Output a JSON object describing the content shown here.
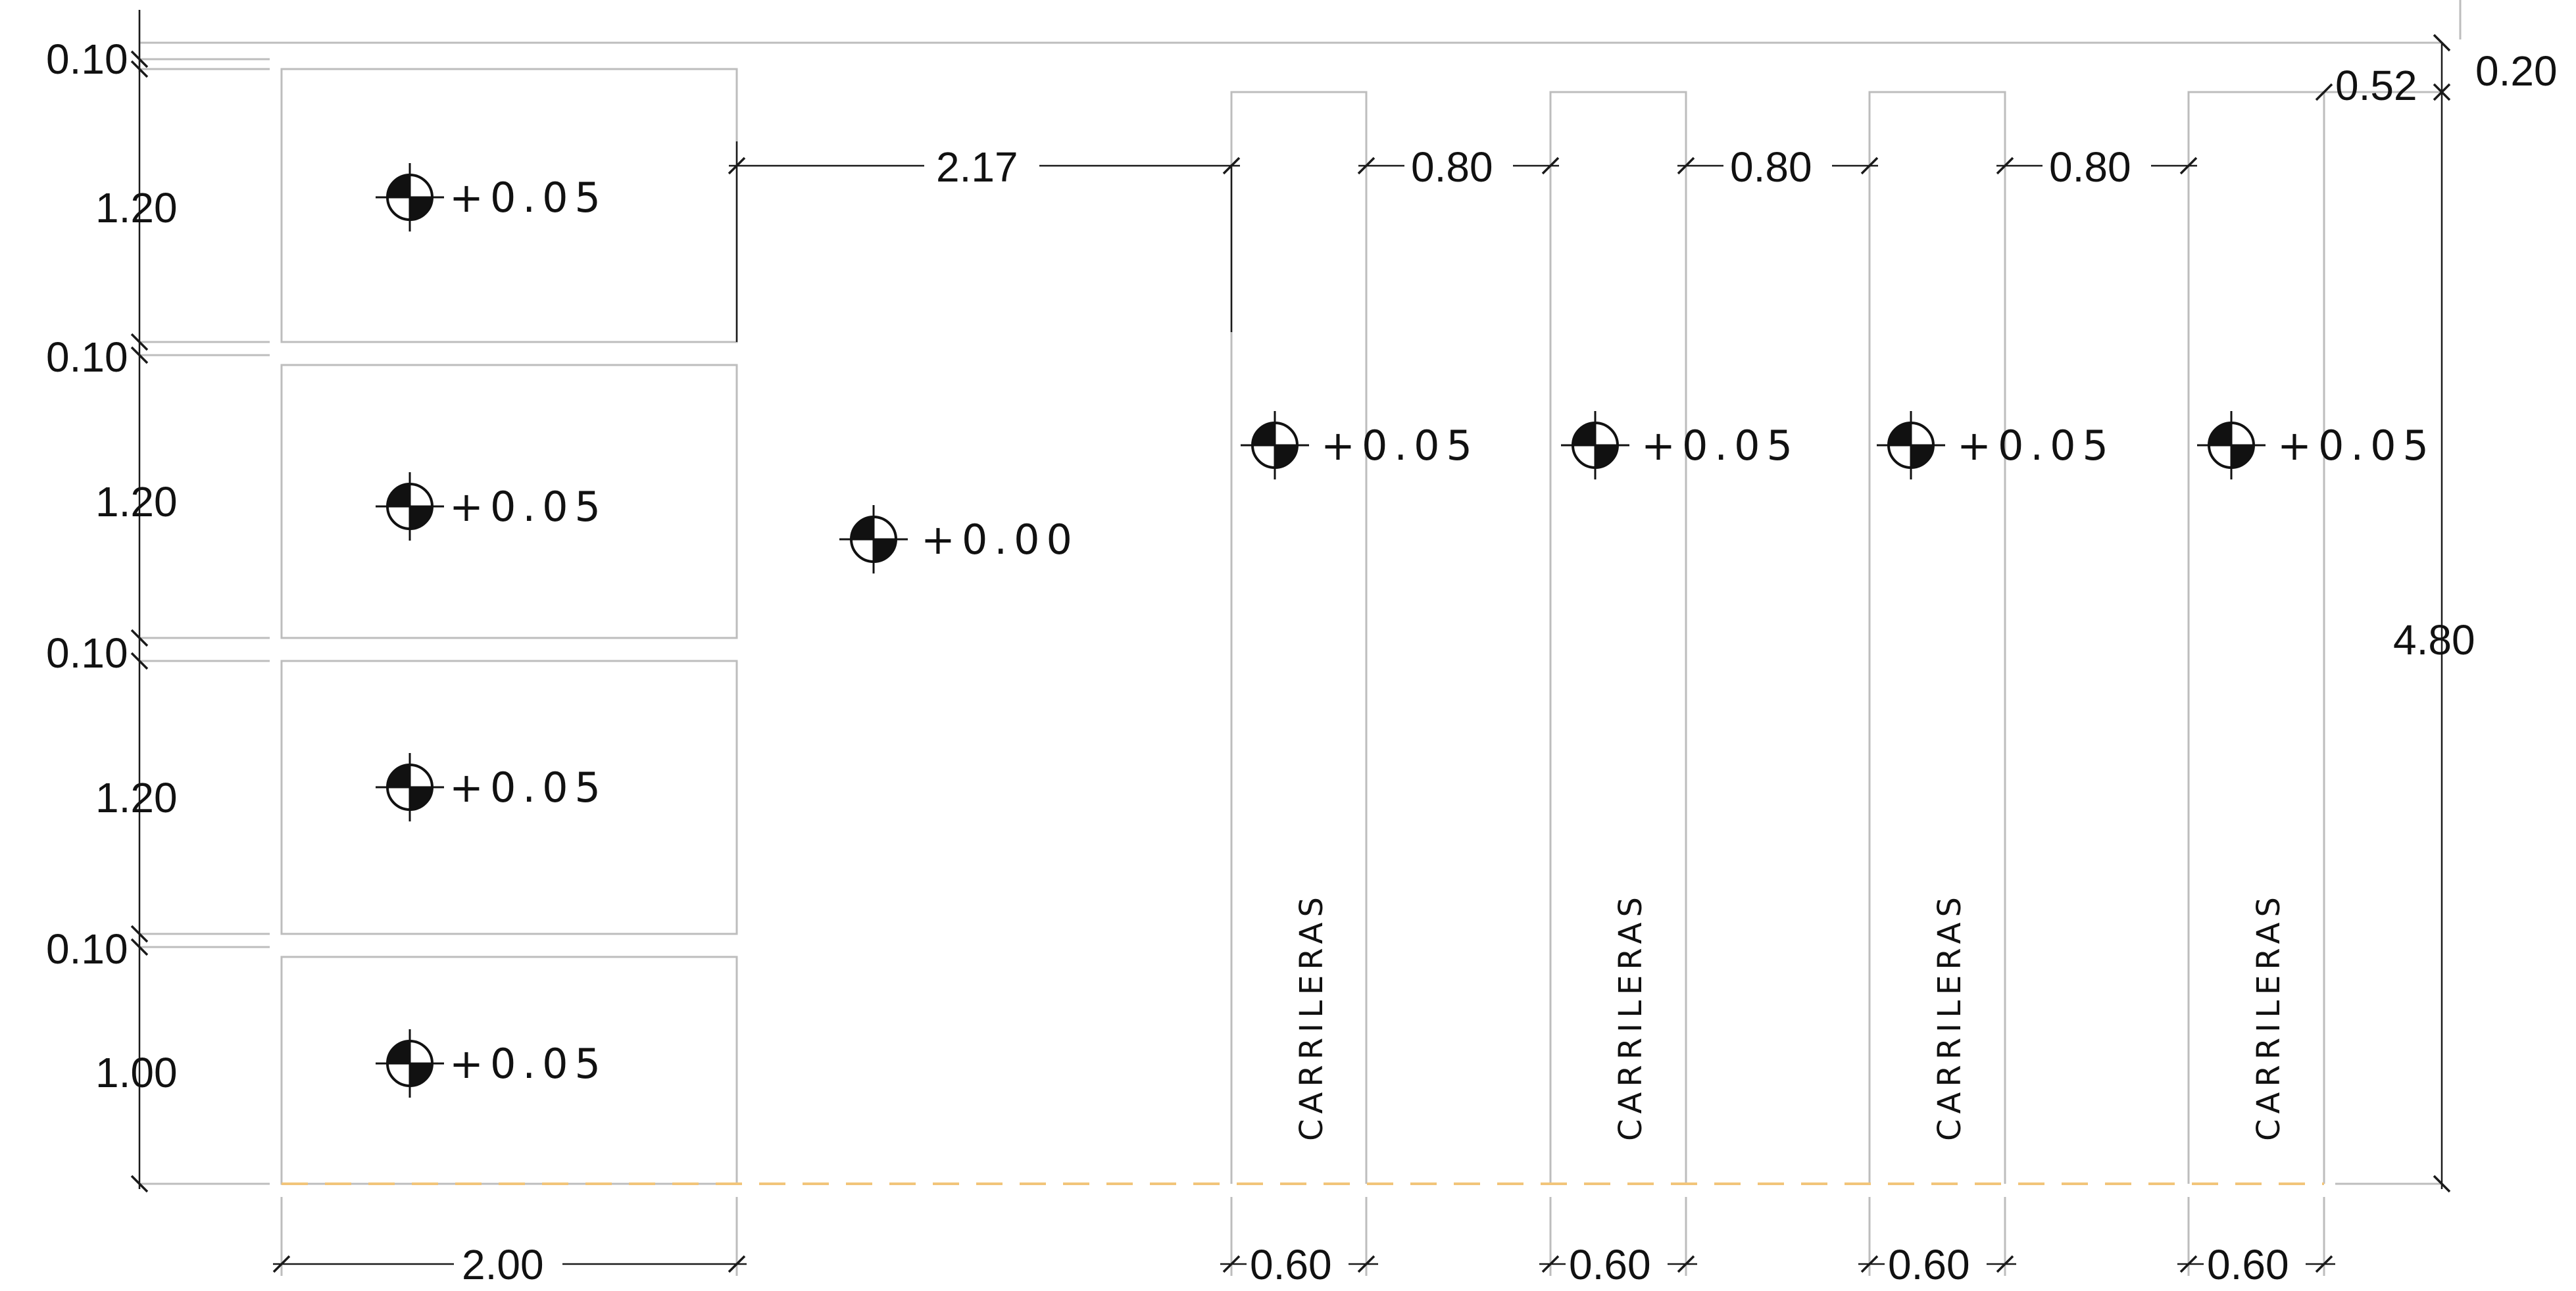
{
  "dimensions": {
    "gap_top": "0.10",
    "row1": "1.20",
    "gap2": "0.10",
    "row2": "1.20",
    "gap3": "0.10",
    "row3": "1.20",
    "gap4": "0.10",
    "row4": "1.00",
    "bottom_width": "2.00",
    "span": "2.17",
    "spacings": [
      "0.80",
      "0.80",
      "0.80"
    ],
    "lane_widths": [
      "0.60",
      "0.60",
      "0.60",
      "0.60"
    ],
    "top_offset": "0.52",
    "top_right": "0.20",
    "total_height": "4.80"
  },
  "levels": {
    "box_levels": [
      "+0.05",
      "+0.05",
      "+0.05",
      "+0.05"
    ],
    "floor_level": "+0.00",
    "lane_levels": [
      "+0.05",
      "+0.05",
      "+0.05",
      "+0.05"
    ]
  },
  "labels": {
    "lanes": [
      "CARRILERAS",
      "CARRILERAS",
      "CARRILERAS",
      "CARRILERAS"
    ]
  },
  "colors": {
    "outline": "#bdbdbd",
    "dimension": "#1a1a1a",
    "dashed_edge": "#f2c57a"
  }
}
